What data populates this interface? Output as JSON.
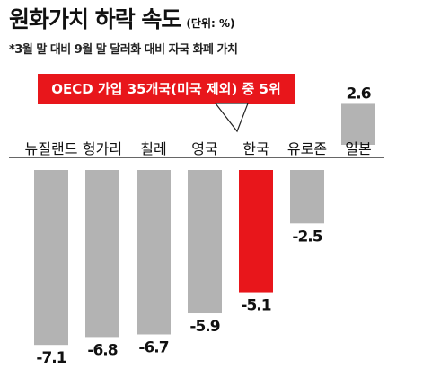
{
  "header": {
    "title": "원화가치 하락 속도",
    "unit": "(단위: %)",
    "subtitle": "*3월 말 대비 9월 말 달러화 대비 자국 화폐 가치"
  },
  "callout": {
    "text": "OECD 가입 35개국(미국 제외) 중 5위"
  },
  "colors": {
    "bar": "#b3b3b3",
    "highlight": "#e8161b",
    "callout_bg": "#e8161b",
    "callout_text": "#ffffff",
    "axis": "#333333"
  },
  "chart_data": {
    "type": "bar",
    "categories": [
      "뉴질랜드",
      "헝가리",
      "칠레",
      "영국",
      "한국",
      "유로존",
      "일본"
    ],
    "values": [
      -7.1,
      -6.8,
      -6.7,
      -5.9,
      -5.1,
      -2.5,
      2.6
    ],
    "value_labels": [
      "-7.1",
      "-6.8",
      "-6.7",
      "-5.9",
      "-5.1",
      "-2.5",
      "2.6"
    ],
    "highlight_category": "한국",
    "ylim": [
      -7.4,
      2.8
    ],
    "grid": false,
    "legend": "none"
  }
}
